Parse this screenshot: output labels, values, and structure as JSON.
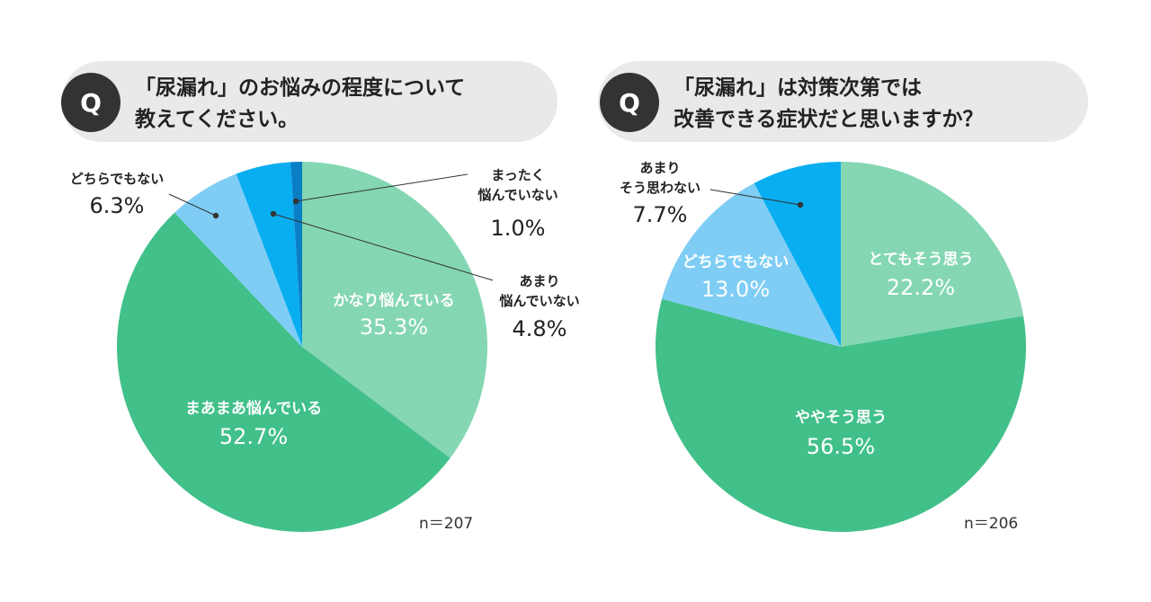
{
  "chart_data": [
    {
      "type": "pie",
      "question_mark": "Q",
      "title_lines": [
        "「尿漏れ」のお悩みの程度について",
        "教えてください。"
      ],
      "n_label": "n＝207",
      "slices": [
        {
          "label_lines": [
            "かなり悩んでいる"
          ],
          "value": 35.3,
          "value_text": "35.3%",
          "color": "#84d7b2"
        },
        {
          "label_lines": [
            "まあまあ悩んでいる"
          ],
          "value": 52.7,
          "value_text": "52.7%",
          "color": "#41c08a"
        },
        {
          "label_lines": [
            "どちらでもない"
          ],
          "value": 6.3,
          "value_text": "6.3%",
          "color": "#7fcdf5"
        },
        {
          "label_lines": [
            "あまり",
            "悩んでいない"
          ],
          "value": 4.8,
          "value_text": "4.8%",
          "color": "#08aef0"
        },
        {
          "label_lines": [
            "まったく",
            "悩んでいない"
          ],
          "value": 1.0,
          "value_text": "1.0%",
          "color": "#0a7fc6"
        }
      ]
    },
    {
      "type": "pie",
      "question_mark": "Q",
      "title_lines": [
        "「尿漏れ」は対策次第では",
        "改善できる症状だと思いますか？"
      ],
      "n_label": "n＝206",
      "slices": [
        {
          "label_lines": [
            "とてもそう思う"
          ],
          "value": 22.2,
          "value_text": "22.2%",
          "color": "#84d7b2"
        },
        {
          "label_lines": [
            "ややそう思う"
          ],
          "value": 56.5,
          "value_text": "56.5%",
          "color": "#41c08a"
        },
        {
          "label_lines": [
            "どちらでもない"
          ],
          "value": 13.0,
          "value_text": "13.0%",
          "color": "#7fcdf5"
        },
        {
          "label_lines": [
            "あまり",
            "そう思わない"
          ],
          "value": 7.7,
          "value_text": "7.7%",
          "color": "#08aef0"
        }
      ]
    }
  ],
  "colors": {
    "question_pill": "#e9e9e9",
    "question_circle": "#333333",
    "leader_line": "#333333"
  }
}
